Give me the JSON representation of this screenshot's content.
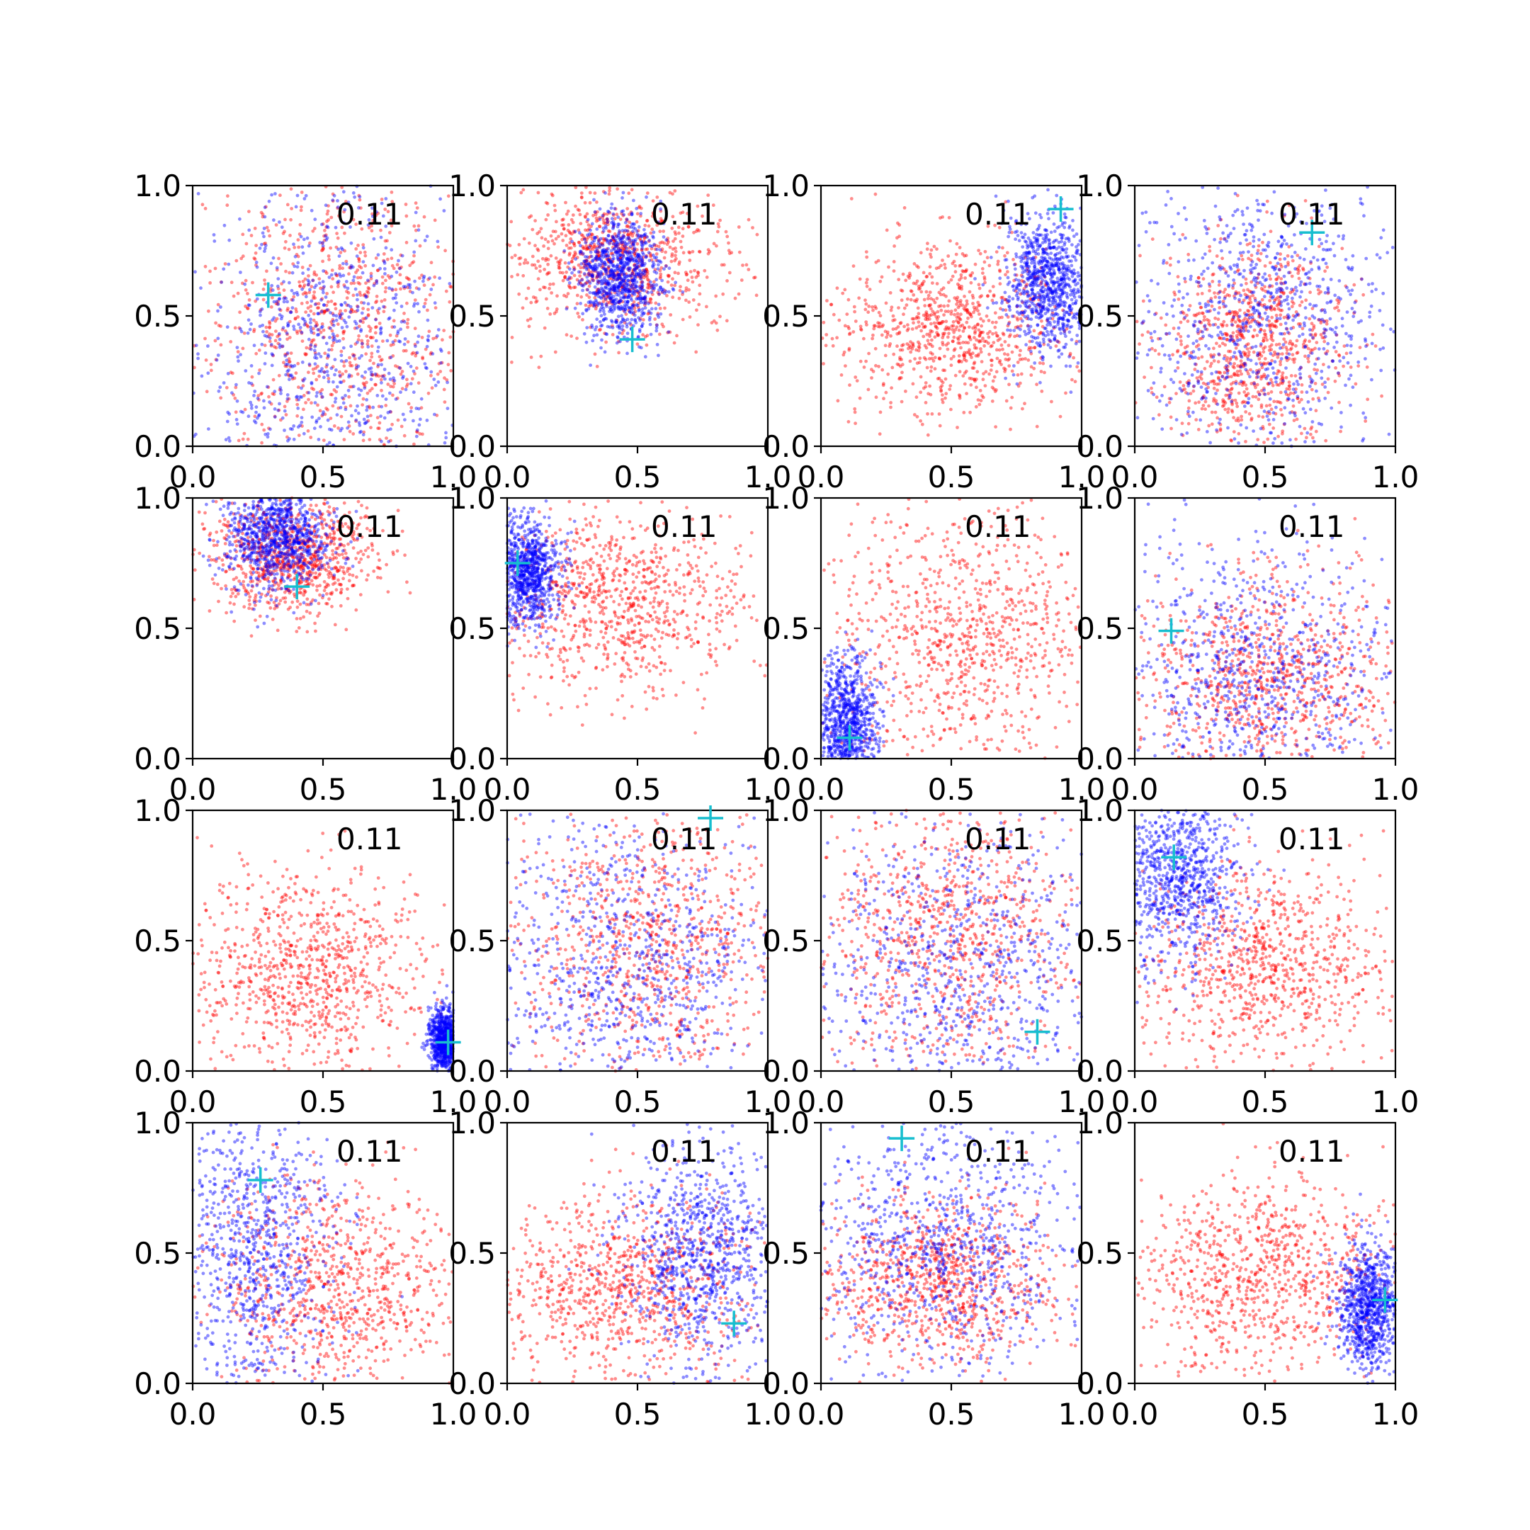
{
  "figure": {
    "grid_rows": 4,
    "grid_cols": 4,
    "colors": {
      "series_a": "#ff0000",
      "series_b": "#0000ff",
      "marker": "#17becf"
    }
  },
  "chart_data": [
    {
      "type": "scatter",
      "annotation": "0.11",
      "xlim": [
        0,
        1
      ],
      "ylim": [
        0,
        1
      ],
      "xticks": [
        "0.0",
        "0.5",
        "1.0"
      ],
      "yticks": [
        "0.0",
        "0.5",
        "1.0"
      ],
      "grid": false,
      "marker": {
        "x": 0.29,
        "y": 0.58
      },
      "series": [
        {
          "color": "#ff0000",
          "cluster": {
            "cx": 0.55,
            "cy": 0.5,
            "sx": 0.26,
            "sy": 0.28
          }
        },
        {
          "color": "#0000ff",
          "cluster": {
            "cx": 0.55,
            "cy": 0.35,
            "sx": 0.3,
            "sy": 0.33
          }
        }
      ]
    },
    {
      "type": "scatter",
      "annotation": "0.11",
      "xlim": [
        0,
        1
      ],
      "ylim": [
        0,
        1
      ],
      "xticks": [
        "0.0",
        "0.5",
        "1.0"
      ],
      "yticks": [
        "0.0",
        "0.5",
        "1.0"
      ],
      "grid": false,
      "marker": {
        "x": 0.48,
        "y": 0.41
      },
      "series": [
        {
          "color": "#ff0000",
          "cluster": {
            "cx": 0.42,
            "cy": 0.72,
            "sx": 0.2,
            "sy": 0.14
          }
        },
        {
          "color": "#0000ff",
          "cluster": {
            "cx": 0.43,
            "cy": 0.65,
            "sx": 0.08,
            "sy": 0.12
          }
        }
      ]
    },
    {
      "type": "scatter",
      "annotation": "0.11",
      "xlim": [
        0,
        1
      ],
      "ylim": [
        0,
        1
      ],
      "xticks": [
        "0.0",
        "0.5",
        "1.0"
      ],
      "yticks": [
        "0.0",
        "0.5",
        "1.0"
      ],
      "grid": false,
      "marker": {
        "x": 0.92,
        "y": 0.91
      },
      "series": [
        {
          "color": "#ff0000",
          "cluster": {
            "cx": 0.5,
            "cy": 0.45,
            "sx": 0.22,
            "sy": 0.17
          }
        },
        {
          "color": "#0000ff",
          "cluster": {
            "cx": 0.88,
            "cy": 0.63,
            "sx": 0.08,
            "sy": 0.13
          }
        }
      ]
    },
    {
      "type": "scatter",
      "annotation": "0.11",
      "xlim": [
        0,
        1
      ],
      "ylim": [
        0,
        1
      ],
      "xticks": [
        "0.0",
        "0.5",
        "1.0"
      ],
      "yticks": [
        "0.0",
        "0.5",
        "1.0"
      ],
      "grid": false,
      "marker": {
        "x": 0.68,
        "y": 0.82
      },
      "series": [
        {
          "color": "#ff0000",
          "cluster": {
            "cx": 0.45,
            "cy": 0.38,
            "sx": 0.18,
            "sy": 0.2
          }
        },
        {
          "color": "#0000ff",
          "cluster": {
            "cx": 0.5,
            "cy": 0.5,
            "sx": 0.28,
            "sy": 0.28
          }
        }
      ]
    },
    {
      "type": "scatter",
      "annotation": "0.11",
      "xlim": [
        0,
        1
      ],
      "ylim": [
        0,
        1
      ],
      "xticks": [
        "0.0",
        "0.5",
        "1.0"
      ],
      "yticks": [
        "0.0",
        "0.5",
        "1.0"
      ],
      "grid": false,
      "marker": {
        "x": 0.4,
        "y": 0.66
      },
      "series": [
        {
          "color": "#ff0000",
          "cluster": {
            "cx": 0.38,
            "cy": 0.78,
            "sx": 0.16,
            "sy": 0.11
          }
        },
        {
          "color": "#0000ff",
          "cluster": {
            "cx": 0.32,
            "cy": 0.85,
            "sx": 0.1,
            "sy": 0.1
          }
        }
      ]
    },
    {
      "type": "scatter",
      "annotation": "0.11",
      "xlim": [
        0,
        1
      ],
      "ylim": [
        0,
        1
      ],
      "xticks": [
        "0.0",
        "0.5",
        "1.0"
      ],
      "yticks": [
        "0.0",
        "0.5",
        "1.0"
      ],
      "grid": false,
      "marker": {
        "x": 0.04,
        "y": 0.75
      },
      "series": [
        {
          "color": "#ff0000",
          "cluster": {
            "cx": 0.4,
            "cy": 0.6,
            "sx": 0.25,
            "sy": 0.18
          }
        },
        {
          "color": "#0000ff",
          "cluster": {
            "cx": 0.08,
            "cy": 0.72,
            "sx": 0.06,
            "sy": 0.1
          }
        }
      ]
    },
    {
      "type": "scatter",
      "annotation": "0.11",
      "xlim": [
        0,
        1
      ],
      "ylim": [
        0,
        1
      ],
      "xticks": [
        "0.0",
        "0.5",
        "1.0"
      ],
      "yticks": [
        "0.0",
        "0.5",
        "1.0"
      ],
      "grid": false,
      "marker": {
        "x": 0.11,
        "y": 0.08
      },
      "series": [
        {
          "color": "#ff0000",
          "cluster": {
            "cx": 0.55,
            "cy": 0.45,
            "sx": 0.25,
            "sy": 0.25
          }
        },
        {
          "color": "#0000ff",
          "cluster": {
            "cx": 0.1,
            "cy": 0.14,
            "sx": 0.06,
            "sy": 0.12
          }
        }
      ]
    },
    {
      "type": "scatter",
      "annotation": "0.11",
      "xlim": [
        0,
        1
      ],
      "ylim": [
        0,
        1
      ],
      "xticks": [
        "0.0",
        "0.5",
        "1.0"
      ],
      "yticks": [
        "0.0",
        "0.5",
        "1.0"
      ],
      "grid": false,
      "marker": {
        "x": 0.14,
        "y": 0.49
      },
      "series": [
        {
          "color": "#ff0000",
          "cluster": {
            "cx": 0.5,
            "cy": 0.3,
            "sx": 0.25,
            "sy": 0.2
          }
        },
        {
          "color": "#0000ff",
          "cluster": {
            "cx": 0.45,
            "cy": 0.3,
            "sx": 0.3,
            "sy": 0.28
          }
        }
      ]
    },
    {
      "type": "scatter",
      "annotation": "0.11",
      "xlim": [
        0,
        1
      ],
      "ylim": [
        0,
        1
      ],
      "xticks": [
        "0.0",
        "0.5",
        "1.0"
      ],
      "yticks": [
        "0.0",
        "0.5",
        "1.0"
      ],
      "grid": false,
      "marker": {
        "x": 0.98,
        "y": 0.11
      },
      "series": [
        {
          "color": "#ff0000",
          "cluster": {
            "cx": 0.45,
            "cy": 0.38,
            "sx": 0.22,
            "sy": 0.2
          }
        },
        {
          "color": "#0000ff",
          "cluster": {
            "cx": 0.97,
            "cy": 0.12,
            "sx": 0.03,
            "sy": 0.06
          }
        }
      ]
    },
    {
      "type": "scatter",
      "annotation": "0.11",
      "xlim": [
        0,
        1
      ],
      "ylim": [
        0,
        1
      ],
      "xticks": [
        "0.0",
        "0.5",
        "1.0"
      ],
      "yticks": [
        "0.0",
        "0.5",
        "1.0"
      ],
      "grid": false,
      "marker": {
        "x": 0.78,
        "y": 0.97
      },
      "series": [
        {
          "color": "#ff0000",
          "cluster": {
            "cx": 0.55,
            "cy": 0.5,
            "sx": 0.27,
            "sy": 0.27
          }
        },
        {
          "color": "#0000ff",
          "cluster": {
            "cx": 0.45,
            "cy": 0.4,
            "sx": 0.3,
            "sy": 0.3
          }
        }
      ]
    },
    {
      "type": "scatter",
      "annotation": "0.11",
      "xlim": [
        0,
        1
      ],
      "ylim": [
        0,
        1
      ],
      "xticks": [
        "0.0",
        "0.5",
        "1.0"
      ],
      "yticks": [
        "0.0",
        "0.5",
        "1.0"
      ],
      "grid": false,
      "marker": {
        "x": 0.83,
        "y": 0.15
      },
      "series": [
        {
          "color": "#ff0000",
          "cluster": {
            "cx": 0.5,
            "cy": 0.5,
            "sx": 0.26,
            "sy": 0.27
          }
        },
        {
          "color": "#0000ff",
          "cluster": {
            "cx": 0.55,
            "cy": 0.35,
            "sx": 0.3,
            "sy": 0.32
          }
        }
      ]
    },
    {
      "type": "scatter",
      "annotation": "0.11",
      "xlim": [
        0,
        1
      ],
      "ylim": [
        0,
        1
      ],
      "xticks": [
        "0.0",
        "0.5",
        "1.0"
      ],
      "yticks": [
        "0.0",
        "0.5",
        "1.0"
      ],
      "grid": false,
      "marker": {
        "x": 0.15,
        "y": 0.82
      },
      "series": [
        {
          "color": "#ff0000",
          "cluster": {
            "cx": 0.5,
            "cy": 0.4,
            "sx": 0.25,
            "sy": 0.2
          }
        },
        {
          "color": "#0000ff",
          "cluster": {
            "cx": 0.15,
            "cy": 0.75,
            "sx": 0.12,
            "sy": 0.16
          }
        }
      ]
    },
    {
      "type": "scatter",
      "annotation": "0.11",
      "xlim": [
        0,
        1
      ],
      "ylim": [
        0,
        1
      ],
      "xticks": [
        "0.0",
        "0.5",
        "1.0"
      ],
      "yticks": [
        "0.0",
        "0.5",
        "1.0"
      ],
      "grid": false,
      "marker": {
        "x": 0.26,
        "y": 0.78
      },
      "series": [
        {
          "color": "#ff0000",
          "cluster": {
            "cx": 0.55,
            "cy": 0.35,
            "sx": 0.25,
            "sy": 0.22
          }
        },
        {
          "color": "#0000ff",
          "cluster": {
            "cx": 0.22,
            "cy": 0.5,
            "sx": 0.15,
            "sy": 0.3
          }
        }
      ]
    },
    {
      "type": "scatter",
      "annotation": "0.11",
      "xlim": [
        0,
        1
      ],
      "ylim": [
        0,
        1
      ],
      "xticks": [
        "0.0",
        "0.5",
        "1.0"
      ],
      "yticks": [
        "0.0",
        "0.5",
        "1.0"
      ],
      "grid": false,
      "marker": {
        "x": 0.87,
        "y": 0.23
      },
      "series": [
        {
          "color": "#ff0000",
          "cluster": {
            "cx": 0.45,
            "cy": 0.35,
            "sx": 0.25,
            "sy": 0.18
          }
        },
        {
          "color": "#0000ff",
          "cluster": {
            "cx": 0.75,
            "cy": 0.5,
            "sx": 0.15,
            "sy": 0.22
          }
        }
      ]
    },
    {
      "type": "scatter",
      "annotation": "0.11",
      "xlim": [
        0,
        1
      ],
      "ylim": [
        0,
        1
      ],
      "xticks": [
        "0.0",
        "0.5",
        "1.0"
      ],
      "yticks": [
        "0.0",
        "0.5",
        "1.0"
      ],
      "grid": false,
      "marker": {
        "x": 0.31,
        "y": 0.94
      },
      "series": [
        {
          "color": "#ff0000",
          "cluster": {
            "cx": 0.45,
            "cy": 0.4,
            "sx": 0.23,
            "sy": 0.16
          }
        },
        {
          "color": "#0000ff",
          "cluster": {
            "cx": 0.45,
            "cy": 0.55,
            "sx": 0.25,
            "sy": 0.25
          }
        }
      ]
    },
    {
      "type": "scatter",
      "annotation": "0.11",
      "xlim": [
        0,
        1
      ],
      "ylim": [
        0,
        1
      ],
      "xticks": [
        "0.0",
        "0.5",
        "1.0"
      ],
      "yticks": [
        "0.0",
        "0.5",
        "1.0"
      ],
      "grid": false,
      "marker": {
        "x": 0.96,
        "y": 0.32
      },
      "series": [
        {
          "color": "#ff0000",
          "cluster": {
            "cx": 0.5,
            "cy": 0.4,
            "sx": 0.25,
            "sy": 0.2
          }
        },
        {
          "color": "#0000ff",
          "cluster": {
            "cx": 0.9,
            "cy": 0.3,
            "sx": 0.06,
            "sy": 0.12
          }
        }
      ]
    }
  ]
}
